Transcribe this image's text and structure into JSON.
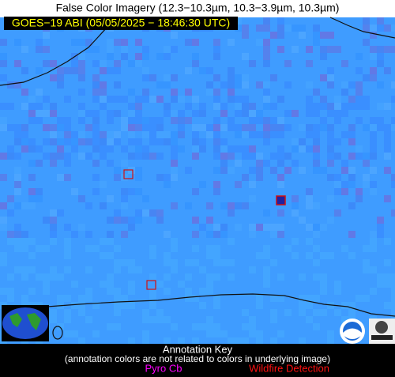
{
  "header": {
    "title": "False Color Imagery (12.3−10.3µm, 10.3−3.9µm, 10.3µm)",
    "timestamp": "GOES−19 ABI (05/05/2025 − 18:46:30 UTC)"
  },
  "annotation_key": {
    "title": "Annotation Key",
    "note": "(annotation colors are not related to colors in underlying image)",
    "items": [
      "Pyro Cb",
      "Wildfire Detection"
    ]
  }
}
